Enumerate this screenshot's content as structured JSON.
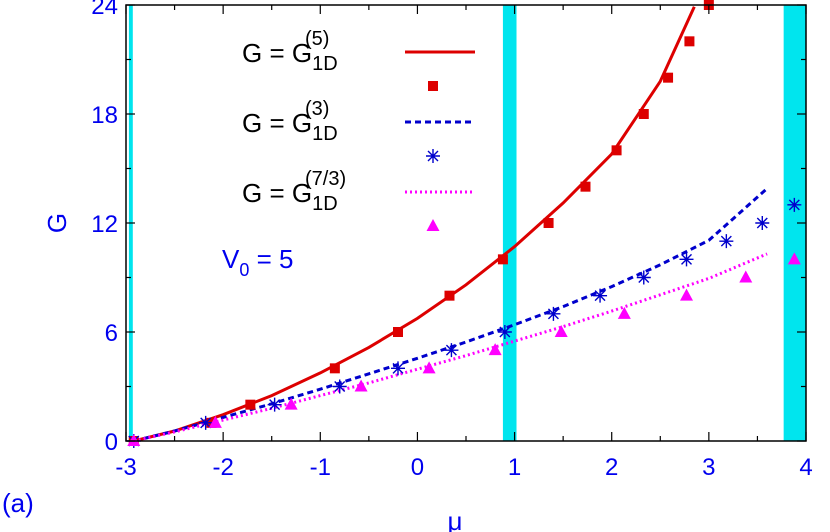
{
  "chart_data": {
    "type": "line",
    "xlabel": "μ",
    "ylabel": "G",
    "xlim": [
      -3,
      4
    ],
    "ylim": [
      0,
      24
    ],
    "x_ticks": [
      "-3",
      "-2",
      "-1",
      "0",
      "1",
      "2",
      "3",
      "4"
    ],
    "y_ticks": [
      "0",
      "6",
      "12",
      "18",
      "24"
    ],
    "annotation": {
      "main": "V",
      "sub": "0",
      "rest": " = 5"
    },
    "panel_label": "(a)",
    "bands": [
      {
        "from": -2.97,
        "to": -2.93,
        "color": "#00e5ee"
      },
      {
        "from": 0.88,
        "to": 1.02,
        "color": "#00e5ee"
      },
      {
        "from": 3.77,
        "to": 4.0,
        "color": "#00e5ee"
      }
    ],
    "series": [
      {
        "legend": {
          "lhs": "G = G",
          "sub": "1D",
          "sup": "(5)"
        },
        "color": "#dd0000",
        "line_style": "solid",
        "marker": "square",
        "line_x": [
          -2.92,
          -2.5,
          -2.0,
          -1.5,
          -1.0,
          -0.5,
          0.0,
          0.5,
          1.0,
          1.5,
          2.0,
          2.5,
          2.85
        ],
        "line_y": [
          0,
          0.55,
          1.45,
          2.5,
          3.75,
          5.15,
          6.75,
          8.6,
          10.7,
          13.1,
          15.8,
          19.8,
          23.9
        ],
        "points_x": [
          -2.92,
          -2.12,
          -1.72,
          -0.85,
          -0.2,
          0.33,
          0.88,
          1.35,
          1.73,
          2.05,
          2.33,
          2.58,
          2.8,
          3.0
        ],
        "points_y": [
          0,
          1,
          2,
          4,
          6,
          8,
          10,
          12,
          14,
          16,
          18,
          20,
          22,
          24
        ]
      },
      {
        "legend": {
          "lhs": "G = G",
          "sub": "1D",
          "sup": "(3)"
        },
        "color": "#0000cc",
        "line_style": "dashed",
        "marker": "asterisk",
        "line_x": [
          -2.92,
          -2.5,
          -2.0,
          -1.5,
          -1.0,
          -0.5,
          0.0,
          0.5,
          1.0,
          1.5,
          2.0,
          2.5,
          3.0,
          3.6
        ],
        "line_y": [
          0,
          0.55,
          1.3,
          2.05,
          2.85,
          3.7,
          4.55,
          5.45,
          6.4,
          7.4,
          8.5,
          9.7,
          11.05,
          13.9
        ],
        "points_x": [
          -2.92,
          -2.18,
          -1.47,
          -0.8,
          -0.2,
          0.35,
          0.9,
          1.4,
          1.88,
          2.33,
          2.77,
          3.18,
          3.55,
          3.88
        ],
        "points_y": [
          0,
          1,
          2,
          3,
          4,
          5,
          6,
          7,
          8,
          9,
          10,
          11,
          12,
          13
        ]
      },
      {
        "legend": {
          "lhs": "G = G",
          "sub": "1D",
          "sup": "(7/3)"
        },
        "color": "#ff00ff",
        "line_style": "dotted",
        "marker": "triangle",
        "line_x": [
          -2.92,
          -2.5,
          -2.0,
          -1.5,
          -1.0,
          -0.5,
          0.0,
          0.5,
          1.0,
          1.5,
          2.0,
          2.5,
          3.0,
          3.6
        ],
        "line_y": [
          0,
          0.5,
          1.15,
          1.8,
          2.5,
          3.2,
          3.95,
          4.7,
          5.5,
          6.3,
          7.15,
          8.05,
          8.95,
          10.3
        ],
        "points_x": [
          -2.92,
          -2.08,
          -1.3,
          -0.58,
          0.12,
          0.8,
          1.48,
          2.13,
          2.77,
          3.38,
          3.88
        ],
        "points_y": [
          0,
          1,
          2,
          3,
          4,
          5,
          6,
          7,
          8,
          9,
          10
        ]
      }
    ]
  }
}
